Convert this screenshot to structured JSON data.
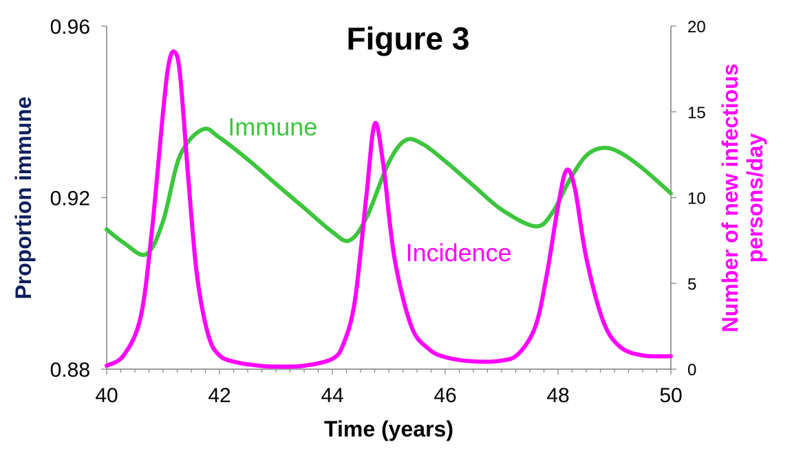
{
  "chart_data": {
    "type": "line",
    "title": "Figure 3",
    "xlabel": "Time (years)",
    "ylabel_left": "Proportion immune",
    "ylabel_right": "Number of new infectious persons/day",
    "xlim": [
      40,
      50
    ],
    "ylim_left": [
      0.88,
      0.96
    ],
    "ylim_right": [
      0,
      20
    ],
    "x_ticks": [
      40,
      42,
      44,
      46,
      48,
      50
    ],
    "y_left_ticks": [
      "0.88",
      "0.92",
      "0.96"
    ],
    "y_right_ticks": [
      "0",
      "5",
      "10",
      "15",
      "20"
    ],
    "grid": false,
    "colors": {
      "immune": "#3cc63c",
      "incidence": "#ff00ff",
      "ylabel_left": "#0d1f5c",
      "ylabel_right": "#ff00ff",
      "axis": "#7f7f7f"
    },
    "series": [
      {
        "name": "Immune",
        "axis": "left",
        "x": [
          40.0,
          40.3,
          40.7,
          41.0,
          41.3,
          41.7,
          42.0,
          42.5,
          43.0,
          43.5,
          44.0,
          44.3,
          44.6,
          45.0,
          45.3,
          45.6,
          46.0,
          46.5,
          47.0,
          47.6,
          47.9,
          48.2,
          48.5,
          48.8,
          49.1,
          49.5,
          50.0
        ],
        "y": [
          0.9126,
          0.9095,
          0.9068,
          0.9145,
          0.9298,
          0.9359,
          0.934,
          0.9289,
          0.9232,
          0.9176,
          0.912,
          0.91,
          0.9152,
          0.9282,
          0.9334,
          0.9325,
          0.9285,
          0.9228,
          0.9172,
          0.9133,
          0.9165,
          0.924,
          0.9298,
          0.9316,
          0.9305,
          0.9268,
          0.921
        ]
      },
      {
        "name": "Incidence",
        "axis": "right",
        "x": [
          40.0,
          40.3,
          40.6,
          40.8,
          41.0,
          41.1,
          41.2,
          41.3,
          41.45,
          41.6,
          41.8,
          42.0,
          42.3,
          42.7,
          43.0,
          43.5,
          44.0,
          44.2,
          44.4,
          44.6,
          44.75,
          44.9,
          45.1,
          45.4,
          45.7,
          46.0,
          46.5,
          47.0,
          47.3,
          47.6,
          47.8,
          48.0,
          48.15,
          48.3,
          48.5,
          48.8,
          49.1,
          49.5,
          50.0
        ],
        "y": [
          0.2,
          0.8,
          3.0,
          8.0,
          15.0,
          17.8,
          18.5,
          17.2,
          11.0,
          5.5,
          2.0,
          0.8,
          0.4,
          0.2,
          0.15,
          0.2,
          0.6,
          1.5,
          4.0,
          10.0,
          14.3,
          12.0,
          6.5,
          2.5,
          1.2,
          0.7,
          0.45,
          0.5,
          0.9,
          2.5,
          5.5,
          9.5,
          11.6,
          10.5,
          6.5,
          2.8,
          1.3,
          0.8,
          0.75
        ]
      }
    ]
  }
}
